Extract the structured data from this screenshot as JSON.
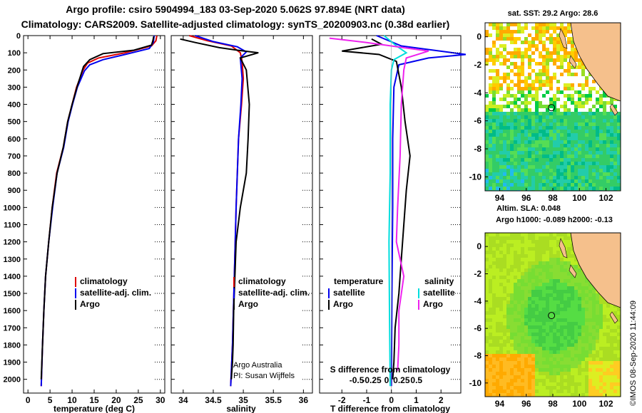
{
  "header": {
    "title": "Argo profile: csiro 5904994_183 03-Sep-2020 5.062S 97.894E (NRT data)",
    "subtitle": "Climatology: CARS2009. Satellite-adjusted climatology: synTS_20200903.nc (0.38d earlier)"
  },
  "footer": {
    "stamp": "©IMOS 08-Sep-2020 11:44:09"
  },
  "colors": {
    "climatology": "#dd0000",
    "satellite": "#0000ee",
    "argo": "#000000",
    "salinity_satellite": "#00dddd",
    "salinity_argo": "#ee22ee",
    "land": "#f5c08c"
  },
  "chart_data": [
    {
      "id": "temperature",
      "type": "line",
      "xlabel": "temperature (deg C)",
      "ylabel": "",
      "xlim": [
        -1,
        31
      ],
      "ylim": [
        2080,
        0
      ],
      "xticks": [
        0,
        5,
        10,
        15,
        20,
        25,
        30
      ],
      "xtick_labels": [
        "0",
        "5",
        "10",
        "15",
        "20",
        "25",
        "30"
      ],
      "yticks": [
        0,
        100,
        200,
        300,
        400,
        500,
        600,
        700,
        800,
        900,
        1000,
        1100,
        1200,
        1300,
        1400,
        1500,
        1600,
        1700,
        1800,
        1900,
        2000
      ],
      "legend": [
        "climatology",
        "satellite-adj. clim.",
        "Argo"
      ],
      "series": [
        {
          "name": "climatology",
          "color": "#dd0000",
          "x": [
            29.2,
            29.0,
            28.0,
            22.0,
            16.0,
            13.5,
            12.5,
            11.0,
            10.0,
            9.0,
            8.0,
            6.5,
            5.5,
            4.7,
            4.0,
            3.6,
            3.3,
            3.0
          ],
          "y": [
            0,
            30,
            60,
            100,
            130,
            160,
            200,
            300,
            400,
            500,
            650,
            800,
            1000,
            1200,
            1400,
            1600,
            1800,
            2040
          ]
        },
        {
          "name": "satellite-adj. clim.",
          "color": "#0000ee",
          "x": [
            28.6,
            28.4,
            27.5,
            22.0,
            17.0,
            14.0,
            12.8,
            11.2,
            10.1,
            9.1,
            8.1,
            6.6,
            5.6,
            4.7,
            4.0,
            3.6,
            3.3,
            3.0
          ],
          "y": [
            0,
            40,
            75,
            110,
            140,
            170,
            205,
            300,
            400,
            500,
            650,
            800,
            1000,
            1200,
            1400,
            1600,
            1800,
            2040
          ]
        },
        {
          "name": "Argo",
          "color": "#000000",
          "x": [
            28.5,
            28.3,
            28.0,
            24.0,
            17.0,
            14.0,
            12.6,
            11.1,
            10.0,
            9.0,
            8.0,
            6.6,
            5.5,
            4.7,
            4.0,
            3.6,
            3.3,
            3.0
          ],
          "y": [
            5,
            30,
            55,
            85,
            105,
            140,
            180,
            300,
            400,
            500,
            650,
            800,
            1000,
            1200,
            1400,
            1600,
            1800,
            2000
          ]
        }
      ]
    },
    {
      "id": "salinity",
      "type": "line",
      "xlabel": "salinity",
      "xlim": [
        33.8,
        36.15
      ],
      "ylim": [
        2080,
        0
      ],
      "xticks": [
        34,
        34.5,
        35,
        35.5,
        36
      ],
      "xtick_labels": [
        "34",
        "34.5",
        "35",
        "35.5",
        "36"
      ],
      "legend": [
        "climatology",
        "satellite-adj. clim.",
        "Argo"
      ],
      "annotations": [
        "Argo Australia",
        "PI: Susan Wijffels"
      ],
      "series": [
        {
          "name": "climatology",
          "color": "#dd0000",
          "x": [
            34.1,
            34.4,
            34.8,
            34.95,
            34.98,
            35.0,
            34.97,
            34.92,
            34.88,
            34.85,
            34.82,
            34.79
          ],
          "y": [
            0,
            30,
            60,
            100,
            150,
            250,
            400,
            600,
            1000,
            1400,
            1800,
            2040
          ]
        },
        {
          "name": "satellite-adj. clim.",
          "color": "#0000ee",
          "x": [
            34.2,
            34.5,
            34.9,
            35.05,
            34.95,
            34.98,
            34.96,
            34.92,
            34.88,
            34.85,
            34.82,
            34.79
          ],
          "y": [
            0,
            35,
            65,
            95,
            130,
            250,
            400,
            600,
            1000,
            1400,
            1800,
            2040
          ]
        },
        {
          "name": "Argo",
          "color": "#000000",
          "x": [
            33.95,
            34.2,
            34.6,
            34.9,
            35.25,
            34.95,
            35.05,
            35.1,
            35.08,
            35.05,
            34.95,
            34.88,
            34.86,
            34.84,
            34.83,
            34.82,
            34.8
          ],
          "y": [
            20,
            40,
            70,
            85,
            100,
            130,
            200,
            400,
            600,
            800,
            1000,
            1200,
            1400,
            1600,
            1800,
            1900,
            2000
          ]
        }
      ]
    },
    {
      "id": "difference",
      "type": "line",
      "xlabel": "T difference from climatology",
      "xlim": [
        -2.9,
        2.8
      ],
      "ylim": [
        2080,
        0
      ],
      "xticks": [
        -2,
        -1,
        0,
        1,
        2
      ],
      "xtick_labels": [
        "-2",
        "-1",
        "0",
        "1",
        "2"
      ],
      "secondary_xlabel": "S difference from climatology",
      "secondary_xtick_labels": [
        "-0.5",
        "-0.25",
        "0",
        "0.25",
        "0.5"
      ],
      "legend_temperature_title": "temperature",
      "legend_salinity_title": "salinity",
      "legend": [
        "satellite",
        "Argo",
        "satellite",
        "Argo"
      ],
      "series": [
        {
          "name": "T satellite",
          "color": "#0000ee",
          "x": [
            -0.6,
            0.4,
            3.0,
            1.5,
            0.3,
            0.1,
            0.05,
            0.05,
            0.02,
            0.0
          ],
          "y": [
            0,
            60,
            110,
            130,
            170,
            300,
            600,
            1000,
            1500,
            2040
          ]
        },
        {
          "name": "T Argo",
          "color": "#000000",
          "x": [
            -0.8,
            -0.4,
            -2.0,
            -0.5,
            0.2,
            0.4,
            0.55,
            0.75,
            0.6,
            0.5,
            0.4,
            0.3,
            0.15,
            0.1,
            0.05
          ],
          "y": [
            20,
            50,
            90,
            110,
            150,
            300,
            500,
            700,
            900,
            1100,
            1300,
            1500,
            1700,
            1900,
            2000
          ]
        },
        {
          "name": "S satellite",
          "color": "#00dddd",
          "x": [
            -0.3,
            0.2,
            0.6,
            0.1,
            0.0,
            -0.05,
            -0.05,
            -0.1,
            -0.08,
            -0.05
          ],
          "y": [
            0,
            60,
            100,
            140,
            200,
            400,
            800,
            1200,
            1600,
            2040
          ]
        },
        {
          "name": "S Argo",
          "color": "#ee22ee",
          "x": [
            -2.5,
            -1.0,
            1.5,
            0.6,
            0.5,
            0.4,
            0.35,
            0.25,
            0.2,
            0.5,
            0.3,
            0.3,
            0.25
          ],
          "y": [
            15,
            40,
            90,
            130,
            200,
            400,
            700,
            1000,
            1200,
            1400,
            1600,
            1800,
            1950
          ]
        }
      ]
    },
    {
      "id": "sst-map",
      "type": "heatmap",
      "title": "sat. SST: 29.2 Argo: 28.6",
      "xticks": [
        94,
        96,
        98,
        100,
        102
      ],
      "yticks": [
        0,
        -2,
        -4,
        -6,
        -8,
        -10
      ],
      "xlim": [
        92.9,
        103.1
      ],
      "ylim": [
        -11,
        1
      ],
      "marker": {
        "lon": 97.9,
        "lat": -5.06
      }
    },
    {
      "id": "sla-map",
      "type": "heatmap",
      "title": "Altim. SLA: 0.048",
      "subtitle": "Argo h1000: -0.089 h2000: -0.13",
      "xticks": [
        94,
        96,
        98,
        100,
        102
      ],
      "yticks": [
        0,
        -2,
        -4,
        -6,
        -8,
        -10
      ],
      "xlim": [
        92.9,
        103.1
      ],
      "ylim": [
        -11,
        1
      ],
      "marker": {
        "lon": 97.9,
        "lat": -5.06
      }
    }
  ]
}
